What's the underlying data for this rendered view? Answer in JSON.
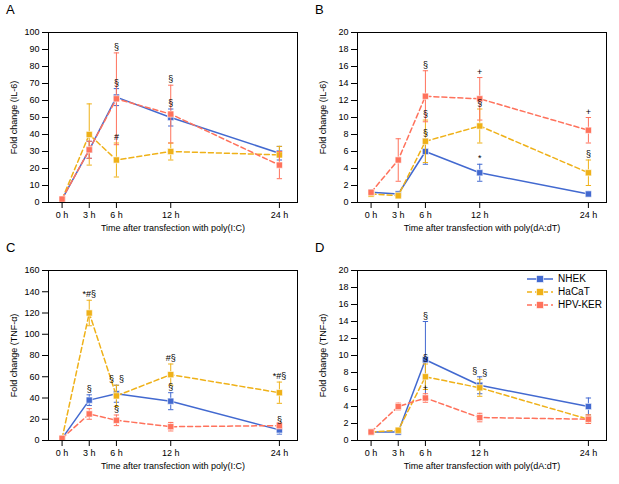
{
  "chart_data": [
    {
      "type": "line",
      "title": "A",
      "xlabel": "Time after transfection with poly(I:C)",
      "ylabel": "Fold change (IL-6)",
      "x": [
        0,
        3,
        6,
        12,
        24
      ],
      "xlim": [
        -1.5,
        26
      ],
      "xticks": [
        {
          "value": 0,
          "label": "0 h"
        },
        {
          "value": 3,
          "label": "3 h"
        },
        {
          "value": 6,
          "label": "6 h"
        },
        {
          "value": 12,
          "label": "12 h"
        },
        {
          "value": 24,
          "label": "24 h"
        }
      ],
      "ylim": [
        0,
        100
      ],
      "yticks": [
        0,
        10,
        20,
        30,
        40,
        50,
        60,
        70,
        80,
        90,
        100
      ],
      "grid": false,
      "series": [
        {
          "name": "NHEK",
          "values": [
            2,
            31,
            62,
            50,
            29
          ],
          "errors": [
            0,
            5,
            5,
            5,
            4
          ],
          "marker": "square",
          "line_style": "solid"
        },
        {
          "name": "HaCaT",
          "values": [
            2,
            40,
            25,
            30,
            28
          ],
          "errors": [
            0,
            18,
            10,
            5,
            5
          ],
          "marker": "square",
          "line_style": "dashed"
        },
        {
          "name": "HPV-KER",
          "values": [
            2,
            31,
            61,
            52,
            22
          ],
          "errors": [
            0,
            5,
            27,
            17,
            8
          ],
          "marker": "square",
          "line_style": "dashed"
        }
      ],
      "annotations": [
        {
          "series": "NHEK",
          "x": 6,
          "text": "§"
        },
        {
          "series": "NHEK",
          "x": 12,
          "text": "§"
        },
        {
          "series": "HaCaT",
          "x": 6,
          "text": "#"
        },
        {
          "series": "HPV-KER",
          "x": 6,
          "text": "§"
        },
        {
          "series": "HPV-KER",
          "x": 12,
          "text": "§"
        }
      ]
    },
    {
      "type": "line",
      "title": "B",
      "xlabel": "Time after transfection with poly(dA:dT)",
      "ylabel": "Fold change (IL-6)",
      "x": [
        0,
        3,
        6,
        12,
        24
      ],
      "xlim": [
        -1.5,
        26
      ],
      "xticks": [
        {
          "value": 0,
          "label": "0 h"
        },
        {
          "value": 3,
          "label": "3 h"
        },
        {
          "value": 6,
          "label": "6 h"
        },
        {
          "value": 12,
          "label": "12 h"
        },
        {
          "value": 24,
          "label": "24 h"
        }
      ],
      "ylim": [
        0,
        20
      ],
      "yticks": [
        0,
        2,
        4,
        6,
        8,
        10,
        12,
        14,
        16,
        18,
        20
      ],
      "grid": false,
      "series": [
        {
          "name": "NHEK",
          "values": [
            1.2,
            1.0,
            6.0,
            3.5,
            1.0
          ],
          "errors": [
            0.2,
            0.3,
            1.5,
            1.0,
            0.3
          ],
          "marker": "square",
          "line_style": "solid"
        },
        {
          "name": "HaCaT",
          "values": [
            1.0,
            0.8,
            7.2,
            9.0,
            3.5
          ],
          "errors": [
            0.2,
            0.3,
            2.5,
            2.0,
            1.5
          ],
          "marker": "square",
          "line_style": "dashed"
        },
        {
          "name": "HPV-KER",
          "values": [
            1.2,
            5.0,
            12.5,
            12.2,
            8.5
          ],
          "errors": [
            0.2,
            2.5,
            3.0,
            2.5,
            1.5
          ],
          "marker": "square",
          "line_style": "dashed"
        }
      ],
      "annotations": [
        {
          "series": "NHEK",
          "x": 6,
          "text": "§"
        },
        {
          "series": "NHEK",
          "x": 12,
          "text": "*"
        },
        {
          "series": "HaCaT",
          "x": 6,
          "text": "§"
        },
        {
          "series": "HaCaT",
          "x": 12,
          "text": "§"
        },
        {
          "series": "HaCaT",
          "x": 24,
          "text": "§"
        },
        {
          "series": "HPV-KER",
          "x": 6,
          "text": "§"
        },
        {
          "series": "HPV-KER",
          "x": 12,
          "text": "+"
        },
        {
          "series": "HPV-KER",
          "x": 24,
          "text": "+"
        }
      ]
    },
    {
      "type": "line",
      "title": "C",
      "xlabel": "Time after transfection with poly(I:C)",
      "ylabel": "Fold change (TNF-α)",
      "x": [
        0,
        3,
        6,
        12,
        24
      ],
      "xlim": [
        -1.5,
        26
      ],
      "xticks": [
        {
          "value": 0,
          "label": "0 h"
        },
        {
          "value": 3,
          "label": "3 h"
        },
        {
          "value": 6,
          "label": "6 h"
        },
        {
          "value": 12,
          "label": "12 h"
        },
        {
          "value": 24,
          "label": "24 h"
        }
      ],
      "ylim": [
        0,
        160
      ],
      "yticks": [
        0,
        20,
        40,
        60,
        80,
        100,
        120,
        140,
        160
      ],
      "grid": false,
      "series": [
        {
          "name": "NHEK",
          "values": [
            2,
            38,
            44,
            37,
            10
          ],
          "errors": [
            0,
            5,
            8,
            8,
            4
          ],
          "marker": "square",
          "line_style": "solid"
        },
        {
          "name": "HaCaT",
          "values": [
            2,
            120,
            42,
            62,
            45
          ],
          "errors": [
            0,
            12,
            10,
            10,
            10
          ],
          "marker": "square",
          "line_style": "dashed"
        },
        {
          "name": "HPV-KER",
          "values": [
            2,
            25,
            19,
            13,
            14
          ],
          "errors": [
            0,
            5,
            5,
            4,
            3
          ],
          "marker": "square",
          "line_style": "dashed"
        }
      ],
      "annotations": [
        {
          "series": "NHEK",
          "x": 3,
          "text": "§"
        },
        {
          "series": "NHEK",
          "x": 6,
          "text": "§"
        },
        {
          "series": "NHEK",
          "x": 12,
          "text": "§"
        },
        {
          "series": "NHEK",
          "x": 24,
          "text": "§"
        },
        {
          "series": "HaCaT",
          "x": 3,
          "text": "*#§"
        },
        {
          "series": "HaCaT",
          "x": 6,
          "text": "§"
        },
        {
          "series": "HaCaT",
          "x": 12,
          "text": "#§"
        },
        {
          "series": "HaCaT",
          "x": 24,
          "text": "*#§"
        },
        {
          "series": "HPV-KER",
          "x": 6,
          "text": "§"
        }
      ]
    },
    {
      "type": "line",
      "title": "D",
      "xlabel": "Time after transfection with poly(dA:dT)",
      "ylabel": "Fold change (TNF-α)",
      "x": [
        0,
        3,
        6,
        12,
        24
      ],
      "xlim": [
        -1.5,
        26
      ],
      "xticks": [
        {
          "value": 0,
          "label": "0 h"
        },
        {
          "value": 3,
          "label": "3 h"
        },
        {
          "value": 6,
          "label": "6 h"
        },
        {
          "value": 12,
          "label": "12 h"
        },
        {
          "value": 24,
          "label": "24 h"
        }
      ],
      "ylim": [
        0,
        20
      ],
      "yticks": [
        0,
        2,
        4,
        6,
        8,
        10,
        12,
        14,
        16,
        18,
        20
      ],
      "grid": false,
      "legend": "upper right",
      "series": [
        {
          "name": "NHEK",
          "values": [
            1.0,
            1.0,
            9.5,
            6.5,
            4.0
          ],
          "errors": [
            0.2,
            0.3,
            4.5,
            1.0,
            1.0
          ],
          "marker": "square",
          "line_style": "solid"
        },
        {
          "name": "HaCaT",
          "values": [
            1.0,
            1.2,
            7.5,
            6.2,
            2.5
          ],
          "errors": [
            0.2,
            0.3,
            1.5,
            1.0,
            0.5
          ],
          "marker": "square",
          "line_style": "dashed"
        },
        {
          "name": "HPV-KER",
          "values": [
            1.0,
            4.0,
            5.0,
            2.7,
            2.5
          ],
          "errors": [
            0.2,
            0.4,
            0.5,
            0.5,
            0.5
          ],
          "marker": "square",
          "line_style": "dashed"
        }
      ],
      "annotations": [
        {
          "series": "NHEK",
          "x": 6,
          "text": "§"
        },
        {
          "series": "NHEK",
          "x": 12,
          "text": "§"
        },
        {
          "series": "HaCaT",
          "x": 6,
          "text": "§"
        },
        {
          "series": "HaCaT",
          "x": 12,
          "text": "§"
        },
        {
          "series": "HPV-KER",
          "x": 6,
          "text": "+"
        }
      ]
    }
  ]
}
